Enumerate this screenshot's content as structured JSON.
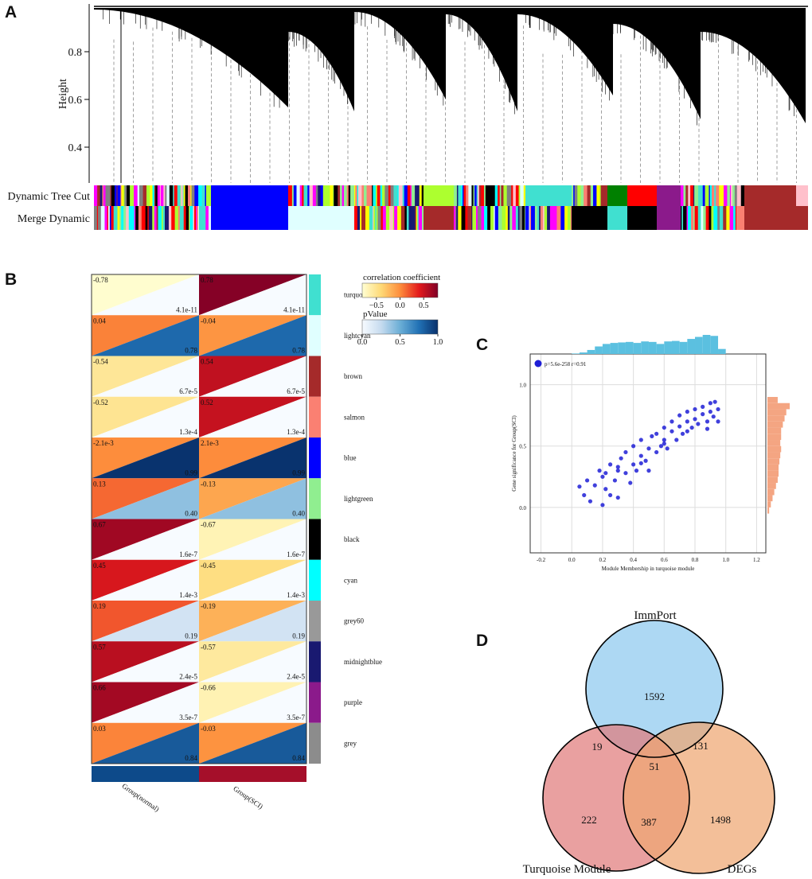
{
  "chart_data": [
    {
      "type": "dendrogram",
      "label": "A",
      "ylabel": "Height",
      "ylim": [
        0.25,
        1.0
      ],
      "yticks": [
        0.4,
        0.6,
        0.8
      ],
      "color_rows": [
        "Dynamic Tree Cut",
        "Merge Dynamic"
      ]
    },
    {
      "type": "heatmap",
      "label": "B",
      "rows": [
        {
          "name": "turquoise",
          "color": "#40e0d0"
        },
        {
          "name": "lightcyan",
          "color": "#e0ffff"
        },
        {
          "name": "brown",
          "color": "#a52a2a"
        },
        {
          "name": "salmon",
          "color": "#fa8072"
        },
        {
          "name": "blue",
          "color": "#0000ff"
        },
        {
          "name": "lightgreen",
          "color": "#90ee90"
        },
        {
          "name": "black",
          "color": "#000000"
        },
        {
          "name": "cyan",
          "color": "#00ffff"
        },
        {
          "name": "grey60",
          "color": "#999999"
        },
        {
          "name": "midnightblue",
          "color": "#191970"
        },
        {
          "name": "purple",
          "color": "#8b1a8b"
        },
        {
          "name": "grey",
          "color": "#8c8c8c"
        }
      ],
      "series": [
        {
          "name": "Group(normal)",
          "color": "#0d4a8a",
          "correlation": {
            "values": [
              -0.78,
              0.04,
              -0.54,
              -0.52,
              -0.0021,
              0.13,
              0.67,
              0.45,
              0.19,
              0.57,
              0.66,
              0.03
            ],
            "value_labels": [
              "-0.78",
              "0.04",
              "-0.54",
              "-0.52",
              "-2.1e-3",
              "0.13",
              "0.67",
              "0.45",
              "0.19",
              "0.57",
              "0.66",
              "0.03"
            ]
          },
          "pvalue": {
            "values": [
              4.1e-11,
              0.78,
              6.7e-05,
              0.00013,
              0.99,
              0.4,
              1.6e-07,
              0.0014,
              0.19,
              2.4e-05,
              3.5e-07,
              0.84
            ],
            "value_labels": [
              "4.1e-11",
              "0.78",
              "6.7e-5",
              "1.3e-4",
              "0.99",
              "0.40",
              "1.6e-7",
              "1.4e-3",
              "0.19",
              "2.4e-5",
              "3.5e-7",
              "0.84"
            ]
          }
        },
        {
          "name": "Group(SCI)",
          "color": "#a50f2a",
          "correlation": {
            "values": [
              0.78,
              -0.04,
              0.54,
              0.52,
              0.0021,
              -0.13,
              -0.67,
              -0.45,
              -0.19,
              -0.57,
              -0.66,
              -0.03
            ],
            "value_labels": [
              "0.78",
              "-0.04",
              "0.54",
              "0.52",
              "2.1e-3",
              "-0.13",
              "-0.67",
              "-0.45",
              "-0.19",
              "-0.57",
              "-0.66",
              "-0.03"
            ]
          },
          "pvalue": {
            "values": [
              4.1e-11,
              0.78,
              6.7e-05,
              0.00013,
              0.99,
              0.4,
              1.6e-07,
              0.0014,
              0.19,
              2.4e-05,
              3.5e-07,
              0.84
            ],
            "value_labels": [
              "4.1e-11",
              "0.78",
              "6.7e-5",
              "1.3e-4",
              "0.99",
              "0.40",
              "1.6e-7",
              "1.4e-3",
              "0.19",
              "2.4e-5",
              "3.5e-7",
              "0.84"
            ]
          }
        }
      ],
      "correlation_scale": {
        "title": "correlation coefficient",
        "lim": [
          -0.8,
          0.8
        ],
        "ticks": [
          {
            "value": -0.5,
            "label": "−0.5"
          },
          {
            "value": 0,
            "label": "0.0"
          },
          0.5
        ],
        "colors": [
          "#ffffd4",
          "#fed976",
          "#fd8d3c",
          "#e31a1c",
          "#800026"
        ]
      },
      "pvalue_scale": {
        "title": "pValue",
        "lim": [
          0,
          1
        ],
        "ticks": [
          {
            "value": 0,
            "label": "0.0"
          },
          0.5,
          {
            "value": 1,
            "label": "1.0"
          }
        ],
        "colors": [
          "#f7fbff",
          "#c6dbef",
          "#6baed6",
          "#2171b5",
          "#08306b"
        ]
      }
    },
    {
      "type": "scatter",
      "label": "C",
      "xlabel": "Module Membership in turquoise module",
      "ylabel": "Gene significance for Group(SCI)",
      "xlim": [
        -0.27,
        1.26
      ],
      "ylim": [
        -0.37,
        1.25
      ],
      "grid": true,
      "xticks": [
        -0.2,
        {
          "value": 0,
          "label": "0.0"
        },
        0.2,
        0.4,
        0.6,
        0.8,
        {
          "value": 1,
          "label": "1.0"
        },
        1.2
      ],
      "yticks": [
        {
          "value": 0,
          "label": "0.0"
        },
        0.5,
        {
          "value": 1,
          "label": "1.0"
        }
      ],
      "series": [
        {
          "name": "p=5.6e-258 r=0.91",
          "color": "#1f1fd6",
          "x": [
            0.05,
            0.08,
            0.1,
            0.12,
            0.15,
            0.18,
            0.2,
            0.2,
            0.22,
            0.25,
            0.25,
            0.28,
            0.3,
            0.3,
            0.32,
            0.35,
            0.35,
            0.38,
            0.4,
            0.4,
            0.42,
            0.45,
            0.45,
            0.48,
            0.5,
            0.5,
            0.52,
            0.55,
            0.55,
            0.58,
            0.6,
            0.6,
            0.62,
            0.65,
            0.65,
            0.68,
            0.7,
            0.7,
            0.72,
            0.75,
            0.75,
            0.78,
            0.8,
            0.8,
            0.82,
            0.85,
            0.85,
            0.88,
            0.9,
            0.9,
            0.92,
            0.95,
            0.95,
            0.3,
            0.45,
            0.6,
            0.75,
            0.88,
            0.22,
            0.93
          ],
          "values": [
            0.17,
            0.1,
            0.22,
            0.05,
            0.18,
            0.3,
            0.02,
            0.25,
            0.15,
            0.35,
            0.1,
            0.22,
            0.3,
            0.08,
            0.4,
            0.28,
            0.45,
            0.2,
            0.35,
            0.5,
            0.3,
            0.42,
            0.55,
            0.38,
            0.48,
            0.3,
            0.58,
            0.45,
            0.6,
            0.5,
            0.55,
            0.65,
            0.48,
            0.62,
            0.7,
            0.55,
            0.66,
            0.75,
            0.6,
            0.7,
            0.78,
            0.65,
            0.72,
            0.8,
            0.68,
            0.76,
            0.82,
            0.7,
            0.78,
            0.85,
            0.74,
            0.8,
            0.7,
            0.33,
            0.36,
            0.52,
            0.62,
            0.64,
            0.28,
            0.86
          ]
        }
      ],
      "x_hist": {
        "color": "#5bc0e0",
        "bins": [
          0,
          0.05,
          0.1,
          0.15,
          0.2,
          0.25,
          0.3,
          0.35,
          0.4,
          0.45,
          0.5,
          0.55,
          0.6,
          0.65,
          0.7,
          0.75,
          0.8,
          0.85,
          0.9,
          0.95,
          1.0
        ],
        "counts": [
          1,
          3,
          8,
          15,
          20,
          22,
          23,
          24,
          22,
          25,
          24,
          20,
          25,
          26,
          24,
          30,
          34,
          38,
          36,
          10
        ]
      },
      "y_hist": {
        "color": "#f4a582",
        "bins": [
          -0.05,
          0,
          0.05,
          0.1,
          0.15,
          0.2,
          0.25,
          0.3,
          0.35,
          0.4,
          0.45,
          0.5,
          0.55,
          0.6,
          0.65,
          0.7,
          0.75,
          0.8,
          0.85,
          0.9
        ],
        "counts": [
          2,
          4,
          6,
          8,
          10,
          12,
          13,
          13,
          14,
          15,
          16,
          15,
          16,
          16,
          18,
          20,
          22,
          26,
          12
        ]
      }
    },
    {
      "type": "venn",
      "label": "D",
      "sets": [
        {
          "name": "ImmPort",
          "color": "#8ec9ef"
        },
        {
          "name": "Turquoise Module",
          "color": "#e07b7b"
        },
        {
          "name": "DEGs",
          "color": "#eea672"
        }
      ],
      "regions": [
        {
          "sets": [
            0
          ],
          "value": 1592
        },
        {
          "sets": [
            0,
            1
          ],
          "value": 19
        },
        {
          "sets": [
            0,
            2
          ],
          "value": 131
        },
        {
          "sets": [
            0,
            1,
            2
          ],
          "value": 51
        },
        {
          "sets": [
            1
          ],
          "value": 222
        },
        {
          "sets": [
            1,
            2
          ],
          "value": 387
        },
        {
          "sets": [
            2
          ],
          "value": 1498
        }
      ]
    }
  ]
}
